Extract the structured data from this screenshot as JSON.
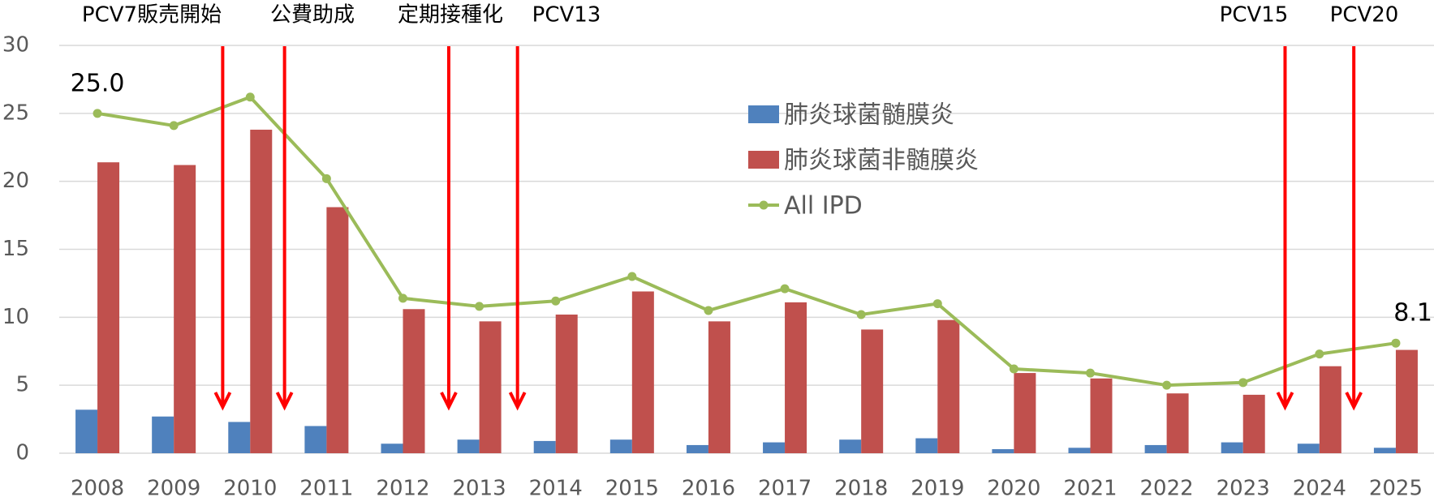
{
  "chart_data": {
    "type": "bar",
    "categories": [
      "2008",
      "2009",
      "2010",
      "2011",
      "2012",
      "2013",
      "2014",
      "2015",
      "2016",
      "2017",
      "2018",
      "2019",
      "2020",
      "2021",
      "2022",
      "2023",
      "2024",
      "2025"
    ],
    "series": [
      {
        "name": "肺炎球菌髄膜炎",
        "type": "bar",
        "color": "#4f81bd",
        "values": [
          3.2,
          2.7,
          2.3,
          2.0,
          0.7,
          1.0,
          0.9,
          1.0,
          0.6,
          0.8,
          1.0,
          1.1,
          0.3,
          0.4,
          0.6,
          0.8,
          0.7,
          0.4
        ]
      },
      {
        "name": "肺炎球菌非髄膜炎",
        "type": "bar",
        "color": "#c0504d",
        "values": [
          21.4,
          21.2,
          23.8,
          18.1,
          10.6,
          9.7,
          10.2,
          11.9,
          9.7,
          11.1,
          9.1,
          9.8,
          5.9,
          5.5,
          4.4,
          4.3,
          6.4,
          7.6
        ]
      },
      {
        "name": "All IPD",
        "type": "line",
        "color": "#9bbb59",
        "values": [
          25.0,
          24.1,
          26.2,
          20.2,
          11.4,
          10.8,
          11.2,
          13.0,
          10.5,
          12.1,
          10.2,
          11.0,
          6.2,
          5.9,
          5.0,
          5.2,
          7.3,
          8.1
        ],
        "value_labels": [
          "25.0",
          null,
          null,
          null,
          null,
          null,
          null,
          null,
          null,
          null,
          null,
          null,
          null,
          null,
          null,
          null,
          null,
          "8.1"
        ]
      }
    ],
    "ylim": [
      0,
      30
    ],
    "yticks": [
      0,
      5,
      10,
      15,
      20,
      25,
      30
    ],
    "grid": true,
    "annotations": [
      {
        "text": "PCV7販売開始",
        "x": 2009.64
      },
      {
        "text": "公費助成",
        "x": 2010.45
      },
      {
        "text": "定期接種化",
        "x": 2012.6
      },
      {
        "text": "PCV13",
        "x": 2013.5
      },
      {
        "text": "PCV15",
        "x": 2023.55
      },
      {
        "text": "PCV20",
        "x": 2024.45
      }
    ]
  }
}
